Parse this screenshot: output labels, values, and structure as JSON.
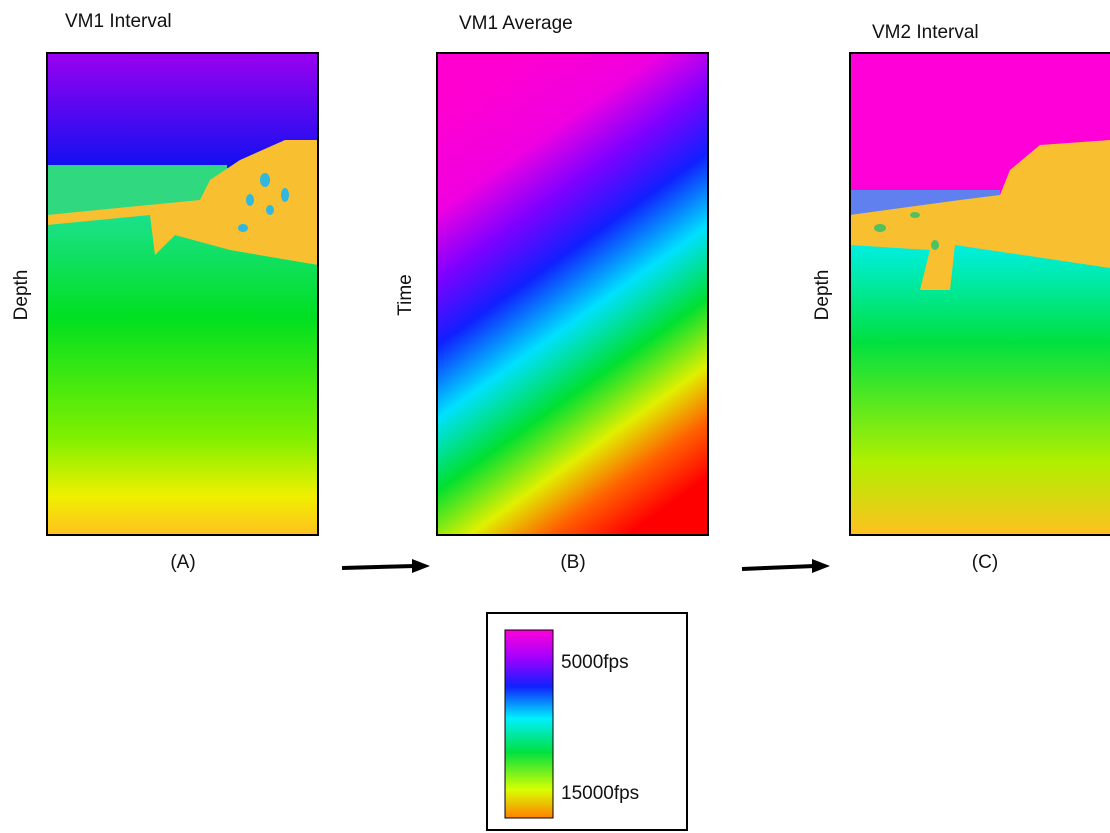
{
  "panels": [
    {
      "title": "VM1 Interval",
      "axis_label": "Depth",
      "caption": "(A)"
    },
    {
      "title": "VM1 Average",
      "axis_label": "Time",
      "caption": "(B)"
    },
    {
      "title": "VM2 Interval",
      "axis_label": "Depth",
      "caption": "(C)"
    }
  ],
  "legend": {
    "labels": [
      "5000fps",
      "15000fps"
    ]
  }
}
